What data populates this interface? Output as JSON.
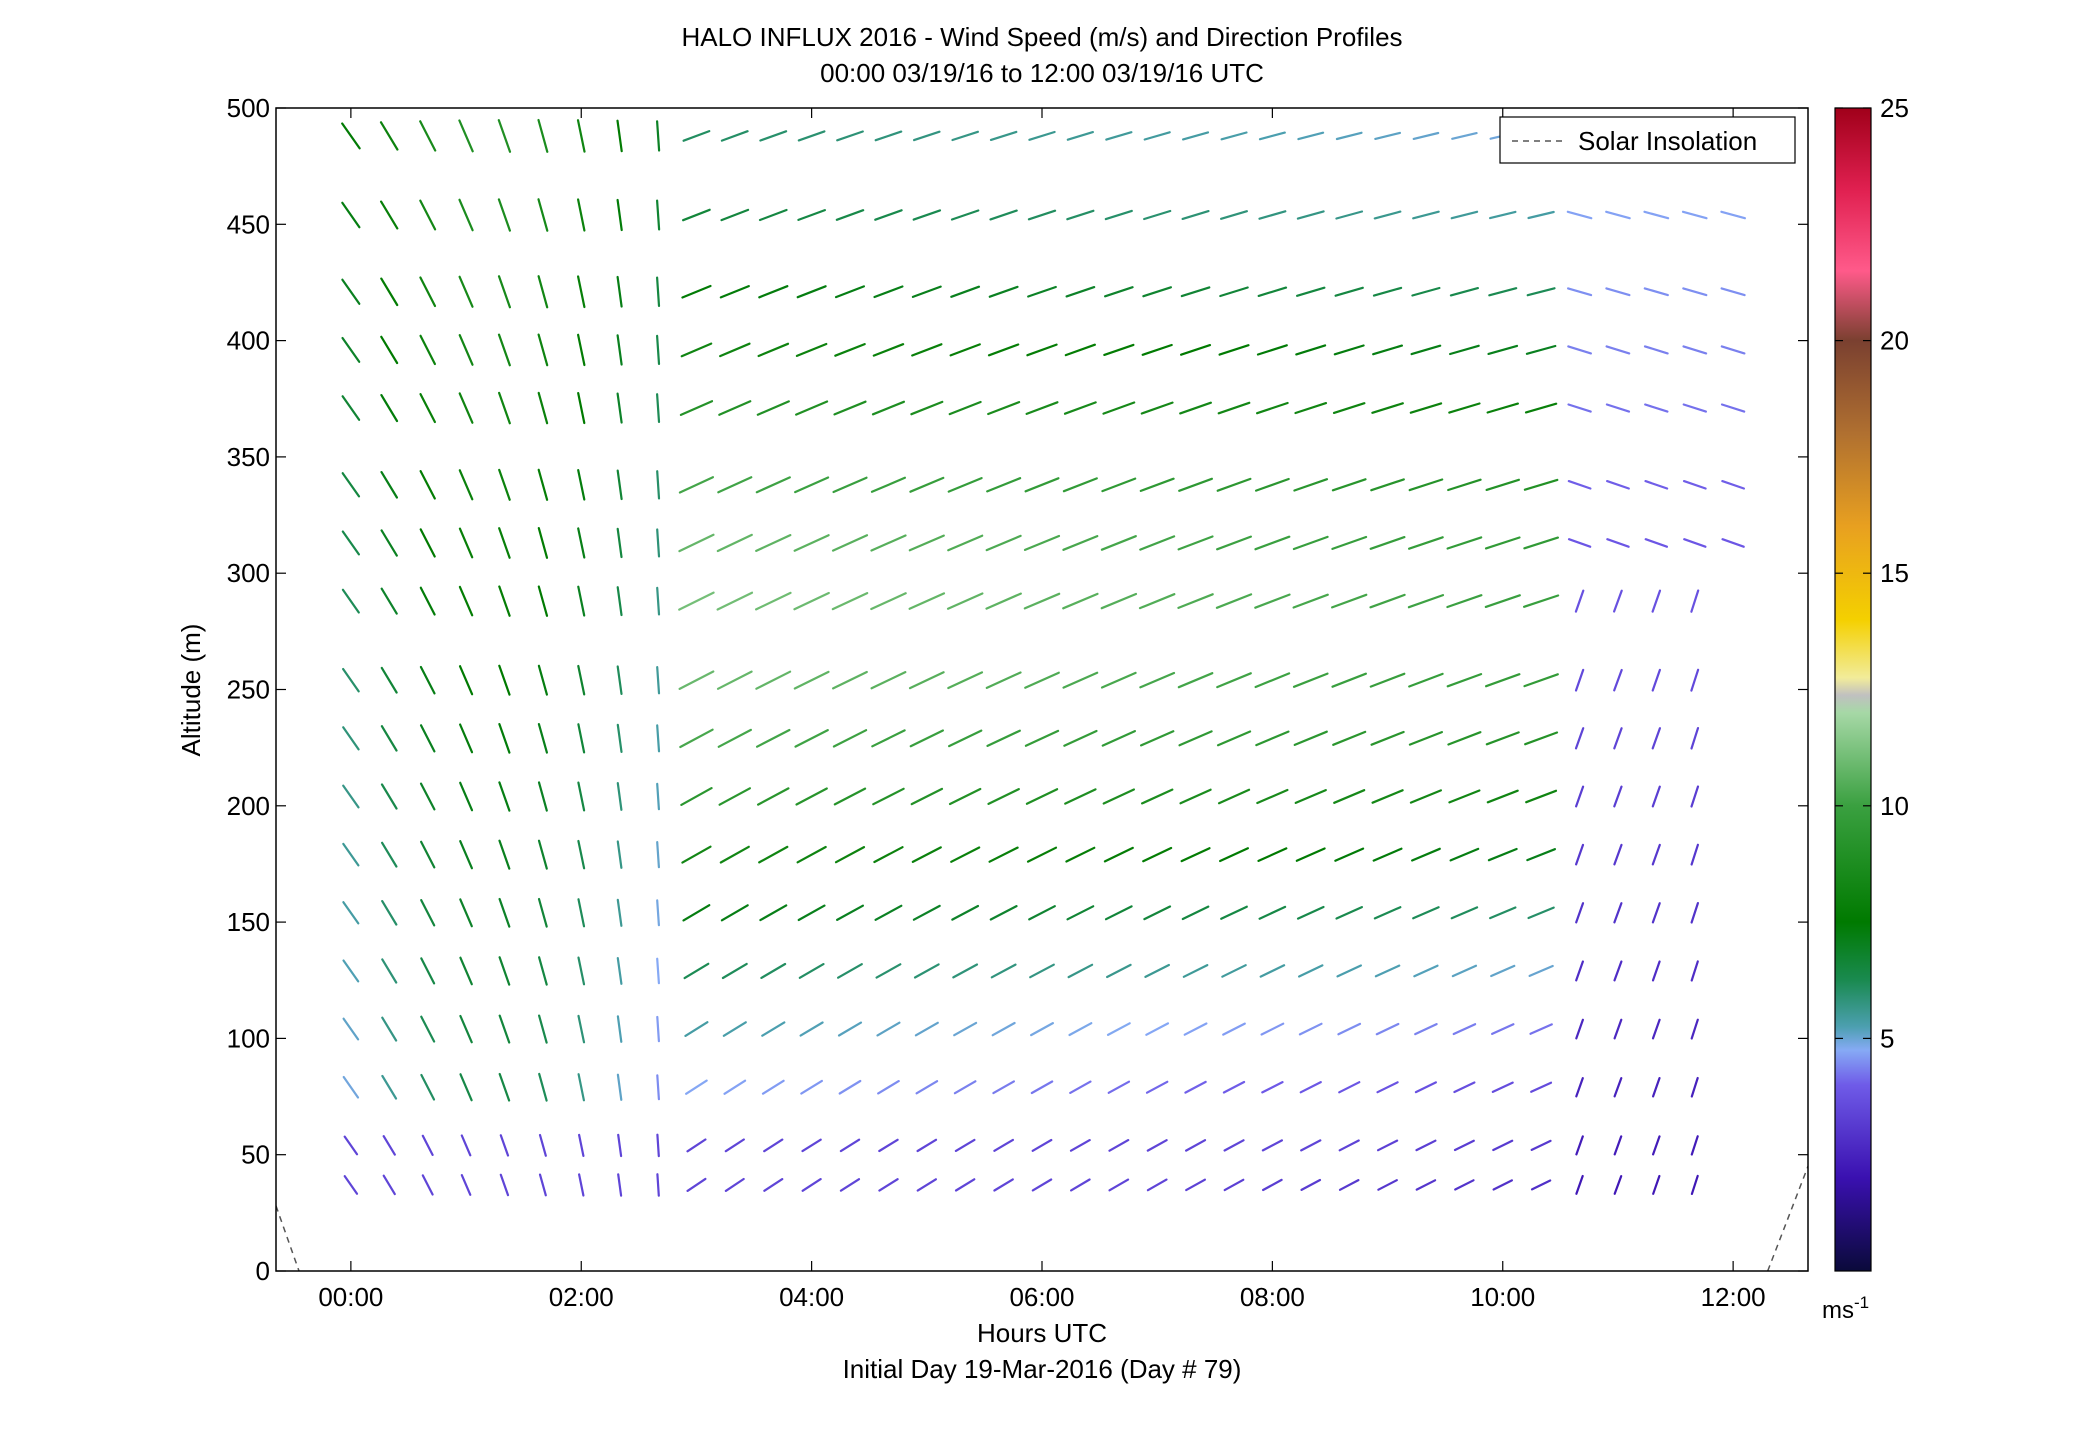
{
  "chart_data": {
    "type": "vector-field",
    "title": "HALO INFLUX 2016 - Wind Speed (m/s) and Direction Profiles",
    "subtitle": "00:00 03/19/16 to 12:00 03/19/16  UTC",
    "xlabel": "Hours UTC",
    "xlabel2": "Initial Day 19-Mar-2016 (Day # 79)",
    "ylabel": "Altitude (m)",
    "xlim": [
      -0.65,
      12.65
    ],
    "ylim": [
      0,
      500
    ],
    "xticks": [
      0,
      2,
      4,
      6,
      8,
      10,
      12
    ],
    "xtick_labels": [
      "00:00",
      "02:00",
      "04:00",
      "06:00",
      "08:00",
      "10:00",
      "12:00"
    ],
    "yticks": [
      0,
      50,
      100,
      150,
      200,
      250,
      300,
      350,
      400,
      450,
      500
    ],
    "ytick_labels": [
      "0",
      "50",
      "100",
      "150",
      "200",
      "250",
      "300",
      "350",
      "400",
      "450",
      "500"
    ],
    "grid": false,
    "legend": {
      "placement": "top-right",
      "entries": [
        {
          "label": "Solar Insolation",
          "style": "dashed",
          "color": "#555555"
        }
      ]
    },
    "colorbar": {
      "range": [
        0,
        25
      ],
      "ticks": [
        5,
        10,
        15,
        20,
        25
      ],
      "tick_labels": [
        "5",
        "10",
        "15",
        "20",
        "25"
      ],
      "unit": "ms",
      "unit_exp": "-1"
    },
    "solar_insolation": {
      "left": [
        [
          -0.65,
          28
        ],
        [
          -0.45,
          0
        ]
      ],
      "right": [
        [
          12.3,
          0
        ],
        [
          12.65,
          45
        ]
      ]
    },
    "times": [
      0,
      0.333,
      0.667,
      1,
      1.333,
      1.667,
      2,
      2.333,
      2.667,
      3,
      3.333,
      3.667,
      4,
      4.333,
      4.667,
      5,
      5.333,
      5.667,
      6,
      6.333,
      6.667,
      7,
      7.333,
      7.667,
      8,
      8.333,
      8.667,
      9,
      9.333,
      9.667,
      10,
      10.333,
      10.667,
      11,
      11.333,
      11.667,
      12
    ],
    "altitudes": [
      37,
      54,
      79,
      104,
      129,
      154,
      179,
      204,
      229,
      254,
      288,
      313,
      338,
      371,
      396,
      421,
      454,
      488
    ]
  }
}
